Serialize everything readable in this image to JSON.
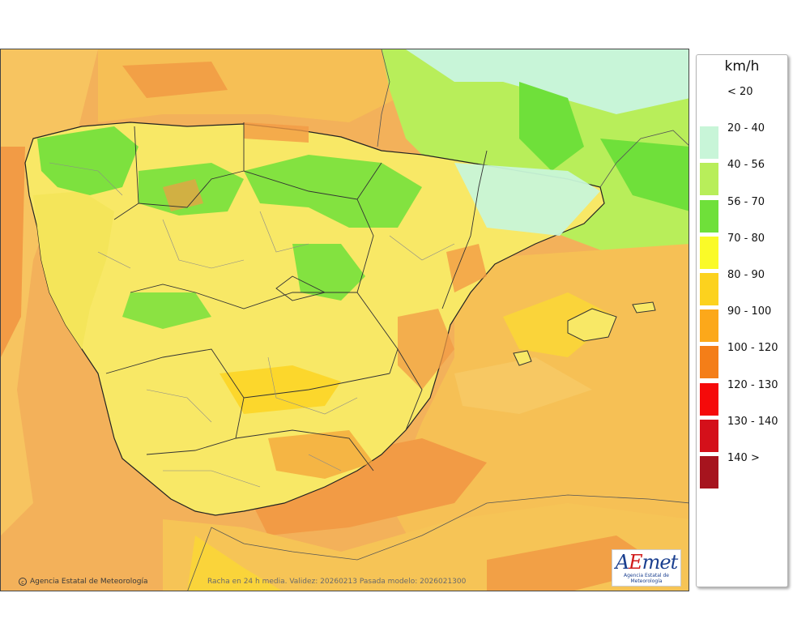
{
  "legend": {
    "unit": "km/h",
    "items": [
      {
        "label": "< 20",
        "color": "#ffffff"
      },
      {
        "label": "20 - 40",
        "color": "#c8f5d8"
      },
      {
        "label": "40 - 56",
        "color": "#b8ee5a"
      },
      {
        "label": "56 - 70",
        "color": "#6fe03a"
      },
      {
        "label": "70 - 80",
        "color": "#fafa28"
      },
      {
        "label": "80 - 90",
        "color": "#fcd21e"
      },
      {
        "label": "90 - 100",
        "color": "#fca81a"
      },
      {
        "label": "100 - 120",
        "color": "#f47e18"
      },
      {
        "label": "120 - 130",
        "color": "#f50a0a"
      },
      {
        "label": "130 - 140",
        "color": "#d4101a"
      },
      {
        "label": "140 >",
        "color": "#a6141e"
      }
    ]
  },
  "footer": {
    "copyright": "Agencia Estatal de Meteorología",
    "validity": "Racha en 24 h media. Validez: 20260213 Pasada modelo: 2026021300"
  },
  "logo": {
    "mark": "AEmet",
    "subtitle": "Agencia Estatal de Meteorología"
  }
}
